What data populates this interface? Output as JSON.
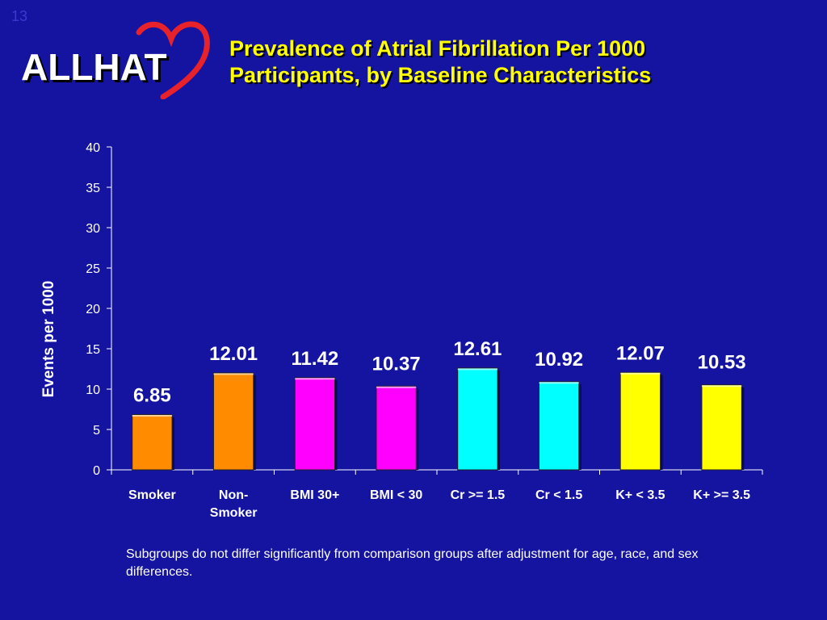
{
  "slide": {
    "number": "13"
  },
  "logo": {
    "text": "ALLHAT",
    "heart_color": "#e8222a"
  },
  "title": {
    "line1": "Prevalence of Atrial Fibrillation Per 1000",
    "line2": "Participants, by Baseline Characteristics"
  },
  "chart_data": {
    "type": "bar",
    "categories": [
      "Smoker",
      "Non-Smoker",
      "BMI 30+",
      "BMI < 30",
      "Cr >= 1.5",
      "Cr < 1.5",
      "K+ < 3.5",
      "K+ >= 3.5"
    ],
    "category_lines": [
      [
        "Smoker"
      ],
      [
        "Non-",
        "Smoker"
      ],
      [
        "BMI 30+"
      ],
      [
        "BMI < 30"
      ],
      [
        "Cr >= 1.5"
      ],
      [
        "Cr < 1.5"
      ],
      [
        "K+ < 3.5"
      ],
      [
        "K+ >= 3.5"
      ]
    ],
    "values": [
      6.85,
      12.01,
      11.42,
      10.37,
      12.61,
      10.92,
      12.07,
      10.53
    ],
    "value_labels": [
      "6.85",
      "12.01",
      "11.42",
      "10.37",
      "12.61",
      "10.92",
      "12.07",
      "10.53"
    ],
    "bar_colors": [
      "#ff8c00",
      "#ff8c00",
      "#ff00ff",
      "#ff00ff",
      "#00ffff",
      "#00ffff",
      "#ffff00",
      "#ffff00"
    ],
    "ylabel": "Events per 1000",
    "xlabel": "",
    "ylim": [
      0,
      40
    ],
    "yticks": [
      0,
      5,
      10,
      15,
      20,
      25,
      30,
      35,
      40
    ],
    "grid": false,
    "legend": "none",
    "background": "#1414a0"
  },
  "footnote": "Subgroups do not differ significantly from comparison groups after adjustment for age, race, and sex differences."
}
